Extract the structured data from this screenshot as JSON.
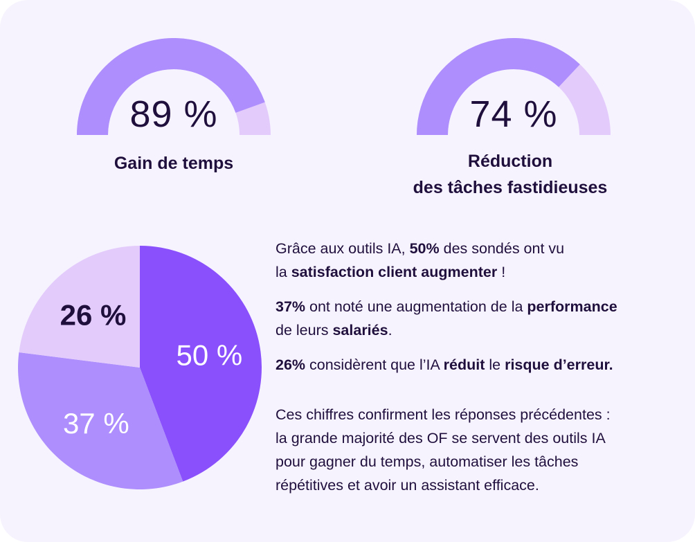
{
  "gauges": [
    {
      "value": 89,
      "value_text": "89 %",
      "label": "Gain de temps"
    },
    {
      "value": 74,
      "value_text": "74 %",
      "label_line1": "Réduction",
      "label_line2": "des tâches fastidieuses"
    }
  ],
  "colors": {
    "background": "#f7f3fe",
    "text": "#1f0f3d",
    "gauge_fill": "#ad8efc",
    "gauge_track": "#e3ccfc",
    "pie_slice_50": "#8a50fc",
    "pie_slice_37": "#ad8efc",
    "pie_slice_26": "#e3ccfc"
  },
  "chart_data": {
    "type": "pie",
    "slices": [
      {
        "label": "50 %",
        "value": 50
      },
      {
        "label": "37 %",
        "value": 37
      },
      {
        "label": "26 %",
        "value": 26
      }
    ]
  },
  "paragraphs": {
    "p1": {
      "t1": "Grâce aux outils IA, ",
      "b1": "50%",
      "t2": " des sondés ont vu",
      "t3": "la ",
      "b2": "satisfaction client augmenter",
      "t4": " !"
    },
    "p2": {
      "b1": "37%",
      "t1": " ont noté une augmentation de la ",
      "b2": "performance",
      "t2": "de leurs ",
      "b3": "salariés",
      "t3": "."
    },
    "p3": {
      "b1": "26%",
      "t1": " considèrent que l’IA ",
      "b2": "réduit",
      "t2": " le ",
      "b3": "risque d’erreur."
    },
    "p4": {
      "line1": "Ces chiffres confirment les réponses précédentes :",
      "line2": "la grande majorité des OF se servent des outils IA",
      "line3": "pour gagner du temps, automatiser les tâches",
      "line4": "répétitives et avoir un assistant efficace."
    }
  }
}
